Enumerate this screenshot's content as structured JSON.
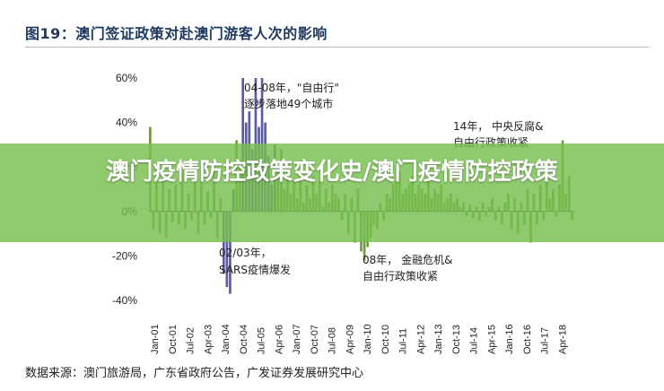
{
  "title": "图19：澳门签证政策对赴澳门游客人次的影响",
  "source": "数据来源：澳门旅游局，广东省政府公告，广发证券发展研究中心",
  "overlay_banner": "澳门疫情防控政策变化史/澳门疫情防控政策",
  "colors": {
    "bar": "#6e9a3c",
    "highlight": "#5a5aa8",
    "title": "#1f3a60"
  },
  "chart_data": {
    "type": "bar",
    "ylim": [
      -40,
      60
    ],
    "yticks": [
      "60%",
      "40%",
      "20%",
      "0%",
      "-20%",
      "-40%"
    ],
    "ytick_values": [
      60,
      40,
      20,
      0,
      -20,
      -40
    ],
    "xticks": [
      "Jan-01",
      "Oct-01",
      "Jul-02",
      "Apr-03",
      "Jan-04",
      "Oct-04",
      "Jul-05",
      "Apr-06",
      "Jan-07",
      "Oct-07",
      "Jul-08",
      "Apr-09",
      "Jan-10",
      "Oct-10",
      "Jul-11",
      "Apr-12",
      "Jan-13",
      "Oct-13",
      "Jul-14",
      "Apr-15",
      "Jan-16",
      "Oct-16",
      "Jul-17",
      "Apr-18"
    ],
    "series": [
      {
        "values": [
          38,
          -8,
          20,
          -10,
          15,
          -12,
          10,
          -5,
          12,
          -6,
          18,
          -8,
          8,
          -4,
          22,
          -10,
          14,
          -6,
          9,
          -3,
          18,
          -12,
          6,
          -28,
          -34,
          -37,
          10,
          32,
          20,
          60,
          40,
          45,
          28,
          60,
          38,
          60,
          40,
          25,
          12,
          30,
          18,
          28,
          10,
          20,
          8,
          15,
          6,
          18,
          4,
          12,
          6,
          16,
          8,
          14,
          2,
          10,
          4,
          12,
          8,
          6,
          -4,
          8,
          -10,
          6,
          -14,
          10,
          -18,
          -22,
          -16,
          -12,
          -6,
          -8,
          4,
          -4,
          8,
          6,
          12,
          14,
          18,
          8,
          10,
          12,
          16,
          8,
          12,
          10,
          8,
          14,
          6,
          10,
          8,
          12,
          4,
          6,
          8,
          4,
          6,
          2,
          4,
          -2,
          3,
          -3,
          2,
          -4,
          4,
          -2,
          2,
          6,
          -4,
          2,
          -6,
          4,
          8,
          -8,
          6,
          -10,
          4,
          -6,
          10,
          -14,
          8,
          -6,
          12,
          -4,
          14,
          6,
          10,
          -2,
          12,
          32,
          8,
          16,
          -4
        ]
      }
    ],
    "highlight_ranges": [
      [
        23,
        26
      ],
      [
        29,
        39
      ]
    ]
  },
  "annotations": {
    "a1_line1": "04-08年，\"自由行\"",
    "a1_line2": "逐步落地49个城市",
    "a2_line1": "14年，  中央反腐&",
    "a2_line2": "自由行政策收紧",
    "a3_line1": "02/03年，",
    "a3_line2": "SARS疫情爆发",
    "a4_line1": "08年，  金融危机&",
    "a4_line2": "自由行政策收紧"
  }
}
